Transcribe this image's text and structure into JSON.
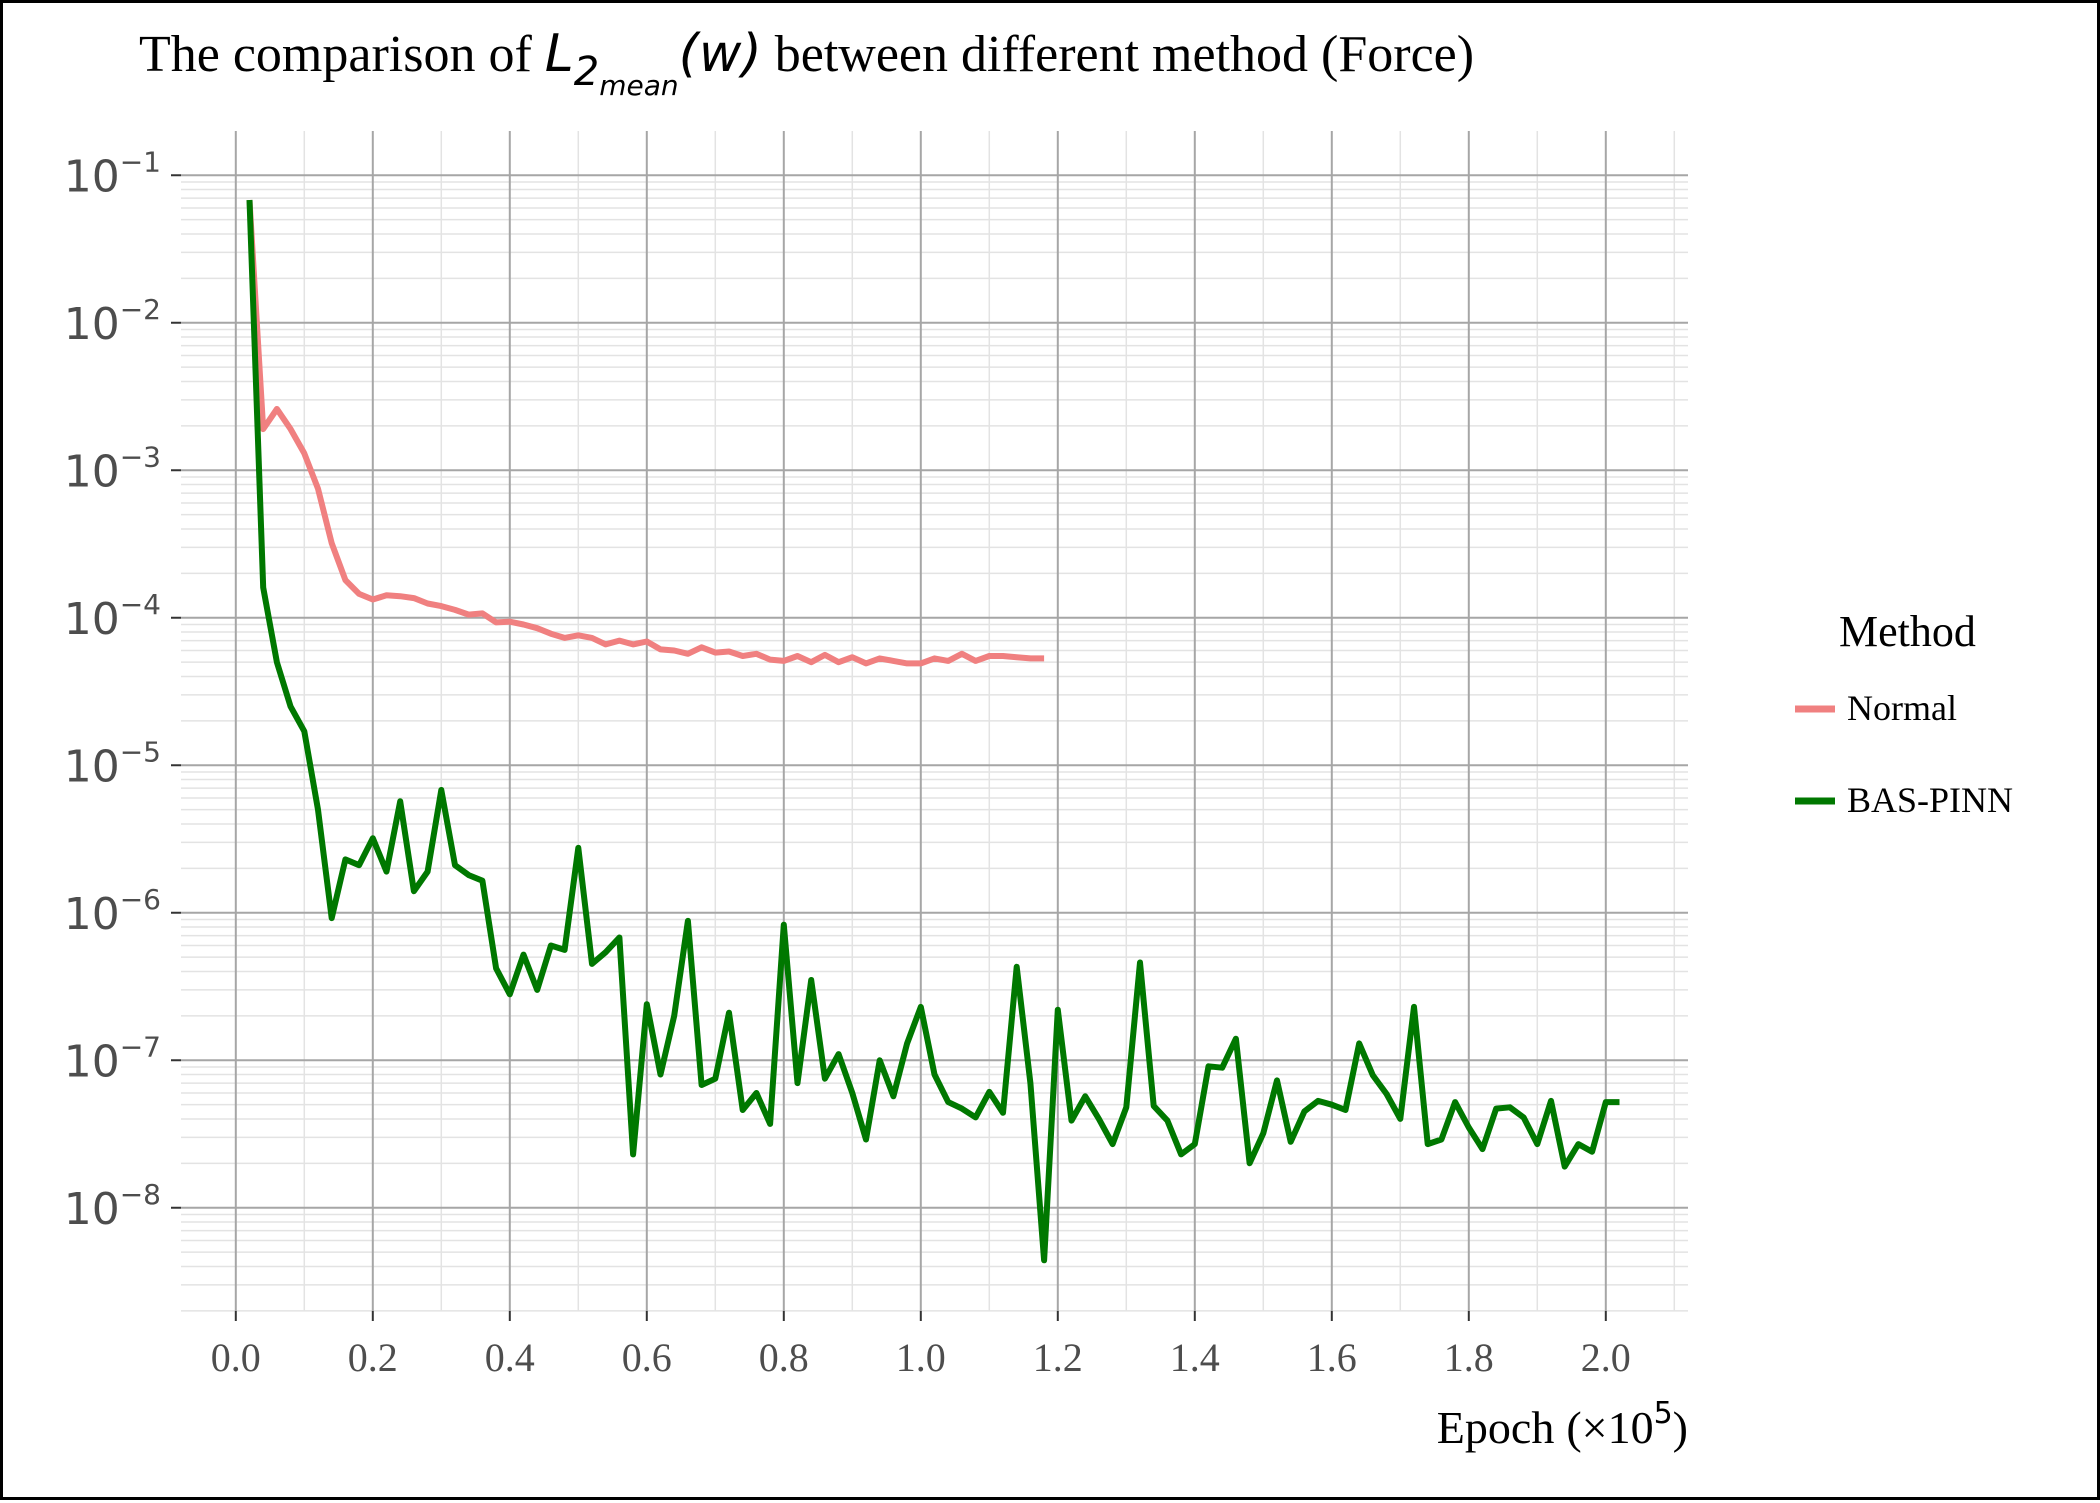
{
  "chart_data": {
    "type": "line",
    "title": {
      "prefix": "The comparison of ",
      "math_base": "L",
      "math_sub_digit": "2",
      "math_sub_word": "mean",
      "math_arg": "(w)",
      "suffix": " between different method (Force)"
    },
    "xlabel": {
      "text": "Epoch",
      "factor": "(×10",
      "factor_exp": "5",
      "close": ")"
    },
    "ylabel": "",
    "x_scale": 100000,
    "xlim": [
      -0.08,
      2.12
    ],
    "ylim_log10": [
      -8.7,
      -0.7
    ],
    "y_scale": "log",
    "grid": true,
    "xticks": [
      "0.0",
      "0.2",
      "0.4",
      "0.6",
      "0.8",
      "1.0",
      "1.2",
      "1.4",
      "1.6",
      "1.8",
      "2.0"
    ],
    "yticks": [
      {
        "base": "10",
        "exp": "−1",
        "value": -1
      },
      {
        "base": "10",
        "exp": "−2",
        "value": -2
      },
      {
        "base": "10",
        "exp": "−3",
        "value": -3
      },
      {
        "base": "10",
        "exp": "−4",
        "value": -4
      },
      {
        "base": "10",
        "exp": "−5",
        "value": -5
      },
      {
        "base": "10",
        "exp": "−6",
        "value": -6
      },
      {
        "base": "10",
        "exp": "−7",
        "value": -7
      },
      {
        "base": "10",
        "exp": "−8",
        "value": -8
      }
    ],
    "legend": {
      "title": "Method",
      "position": "right"
    },
    "series": [
      {
        "name": "Normal",
        "color": "#f08080",
        "x": [
          0.02,
          0.04,
          0.06,
          0.08,
          0.1,
          0.12,
          0.14,
          0.16,
          0.18,
          0.2,
          0.22,
          0.24,
          0.26,
          0.28,
          0.3,
          0.32,
          0.34,
          0.36,
          0.38,
          0.4,
          0.42,
          0.44,
          0.46,
          0.48,
          0.5,
          0.52,
          0.54,
          0.56,
          0.58,
          0.6,
          0.62,
          0.64,
          0.66,
          0.68,
          0.7,
          0.72,
          0.74,
          0.76,
          0.78,
          0.8,
          0.82,
          0.84,
          0.86,
          0.88,
          0.9,
          0.92,
          0.94,
          0.96,
          0.98,
          1.0,
          1.02,
          1.04,
          1.06,
          1.08,
          1.1,
          1.12,
          1.14,
          1.16,
          1.18
        ],
        "y": [
          0.068,
          0.0019,
          0.0026,
          0.0019,
          0.0013,
          0.00075,
          0.00032,
          0.00018,
          0.000145,
          0.000133,
          0.000142,
          0.00014,
          0.000136,
          0.000125,
          0.00012,
          0.000113,
          0.000105,
          0.000107,
          9.3e-05,
          9.4e-05,
          9e-05,
          8.5e-05,
          7.8e-05,
          7.3e-05,
          7.6e-05,
          7.3e-05,
          6.6e-05,
          7e-05,
          6.6e-05,
          6.9e-05,
          6.1e-05,
          6e-05,
          5.7e-05,
          6.3e-05,
          5.8e-05,
          5.9e-05,
          5.5e-05,
          5.7e-05,
          5.2e-05,
          5.1e-05,
          5.5e-05,
          5e-05,
          5.6e-05,
          5e-05,
          5.4e-05,
          4.9e-05,
          5.3e-05,
          5.1e-05,
          4.9e-05,
          4.9e-05,
          5.3e-05,
          5.1e-05,
          5.7e-05,
          5.1e-05,
          5.5e-05,
          5.5e-05,
          5.4e-05,
          5.3e-05,
          5.3e-05
        ]
      },
      {
        "name": "BAS-PINN",
        "color": "#007800",
        "x": [
          0.02,
          0.04,
          0.06,
          0.08,
          0.1,
          0.12,
          0.14,
          0.16,
          0.18,
          0.2,
          0.22,
          0.24,
          0.26,
          0.28,
          0.3,
          0.32,
          0.34,
          0.36,
          0.38,
          0.4,
          0.42,
          0.44,
          0.46,
          0.48,
          0.5,
          0.52,
          0.54,
          0.56,
          0.58,
          0.6,
          0.62,
          0.64,
          0.66,
          0.68,
          0.7,
          0.72,
          0.74,
          0.76,
          0.78,
          0.8,
          0.82,
          0.84,
          0.86,
          0.88,
          0.9,
          0.92,
          0.94,
          0.96,
          0.98,
          1.0,
          1.02,
          1.04,
          1.06,
          1.08,
          1.1,
          1.12,
          1.14,
          1.16,
          1.18,
          1.2,
          1.22,
          1.24,
          1.26,
          1.28,
          1.3,
          1.32,
          1.34,
          1.36,
          1.38,
          1.4,
          1.42,
          1.44,
          1.46,
          1.48,
          1.5,
          1.52,
          1.54,
          1.56,
          1.58,
          1.6,
          1.62,
          1.64,
          1.66,
          1.68,
          1.7,
          1.72,
          1.74,
          1.76,
          1.78,
          1.8,
          1.82,
          1.84,
          1.86,
          1.88,
          1.9,
          1.92,
          1.94,
          1.96,
          1.98,
          2.0,
          2.02
        ],
        "y": [
          0.068,
          0.00016,
          5e-05,
          2.5e-05,
          1.7e-05,
          5e-06,
          9.2e-07,
          2.3e-06,
          2.1e-06,
          3.2e-06,
          1.9e-06,
          5.7e-06,
          1.4e-06,
          1.9e-06,
          6.8e-06,
          2.1e-06,
          1.8e-06,
          1.65e-06,
          4.2e-07,
          2.8e-07,
          5.2e-07,
          3e-07,
          6e-07,
          5.6e-07,
          2.75e-06,
          4.5e-07,
          5.4e-07,
          6.8e-07,
          2.3e-08,
          2.4e-07,
          8e-08,
          2e-07,
          8.8e-07,
          6.8e-08,
          7.5e-08,
          2.1e-07,
          4.6e-08,
          6e-08,
          3.7e-08,
          8.3e-07,
          7e-08,
          3.5e-07,
          7.5e-08,
          1.1e-07,
          6e-08,
          2.9e-08,
          1e-07,
          5.7e-08,
          1.3e-07,
          2.3e-07,
          8e-08,
          5.2e-08,
          4.7e-08,
          4.1e-08,
          6.1e-08,
          4.4e-08,
          4.3e-07,
          7e-08,
          4.4e-09,
          2.2e-07,
          3.9e-08,
          5.7e-08,
          4e-08,
          2.7e-08,
          4.8e-08,
          4.6e-07,
          4.9e-08,
          3.9e-08,
          2.3e-08,
          2.7e-08,
          9.1e-08,
          8.9e-08,
          1.4e-07,
          2e-08,
          3.2e-08,
          7.3e-08,
          2.8e-08,
          4.5e-08,
          5.3e-08,
          5e-08,
          4.6e-08,
          1.3e-07,
          7.9e-08,
          5.9e-08,
          4e-08,
          2.3e-07,
          2.7e-08,
          2.9e-08,
          5.2e-08,
          3.5e-08,
          2.5e-08,
          4.7e-08,
          4.8e-08,
          4.1e-08,
          2.7e-08,
          5.3e-08,
          1.9e-08,
          2.7e-08,
          2.4e-08,
          5.2e-08,
          5.2e-08
        ]
      }
    ]
  }
}
